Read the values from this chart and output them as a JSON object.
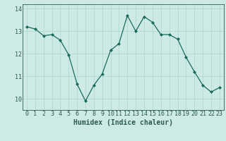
{
  "x": [
    0,
    1,
    2,
    3,
    4,
    5,
    6,
    7,
    8,
    9,
    10,
    11,
    12,
    13,
    14,
    15,
    16,
    17,
    18,
    19,
    20,
    21,
    22,
    23
  ],
  "y": [
    13.2,
    13.1,
    12.8,
    12.85,
    12.6,
    11.95,
    10.65,
    9.9,
    10.6,
    11.1,
    12.15,
    12.45,
    13.7,
    13.0,
    13.65,
    13.4,
    12.85,
    12.85,
    12.65,
    11.85,
    11.2,
    10.6,
    10.3,
    10.5
  ],
  "line_color": "#1a6b5a",
  "marker": "D",
  "marker_size": 2.0,
  "bg_color": "#ceeae6",
  "grid_color": "#aed4ce",
  "axis_color": "#2a5a50",
  "xlabel": "Humidex (Indice chaleur)",
  "xlabel_fontsize": 7,
  "ylim": [
    9.5,
    14.2
  ],
  "xlim": [
    -0.5,
    23.5
  ],
  "yticks": [
    10,
    11,
    12,
    13,
    14
  ],
  "xticks": [
    0,
    1,
    2,
    3,
    4,
    5,
    6,
    7,
    8,
    9,
    10,
    11,
    12,
    13,
    14,
    15,
    16,
    17,
    18,
    19,
    20,
    21,
    22,
    23
  ],
  "tick_fontsize": 6,
  "linewidth": 0.9
}
